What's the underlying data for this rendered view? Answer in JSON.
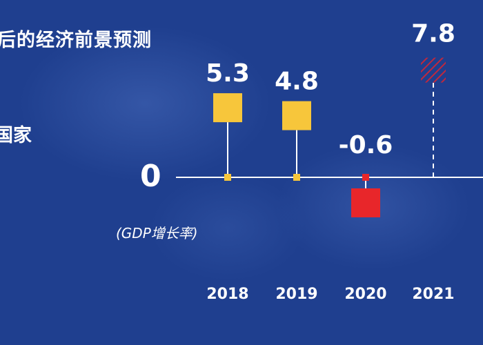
{
  "header": {
    "title": "后的经济前景预测",
    "subtitle": "国家"
  },
  "chart_data": {
    "type": "scatter",
    "title": "后的经济前景预测",
    "ylabel": "(GDP增长率)",
    "zero_label": "0",
    "categories": [
      "2018",
      "2019",
      "2020",
      "2021"
    ],
    "values": [
      5.3,
      4.8,
      -0.6,
      7.8
    ],
    "value_labels": [
      "5.3",
      "4.8",
      "-0.6",
      "7.8"
    ],
    "forecast": [
      false,
      false,
      false,
      true
    ],
    "ylim": [
      -2,
      9
    ],
    "grid": false,
    "legend": "none",
    "colors": {
      "background": "#1f3f8f",
      "positive": "#f7c63b",
      "negative": "#e8262a",
      "forecast": "#c0283d",
      "axis": "#ffffff"
    }
  }
}
